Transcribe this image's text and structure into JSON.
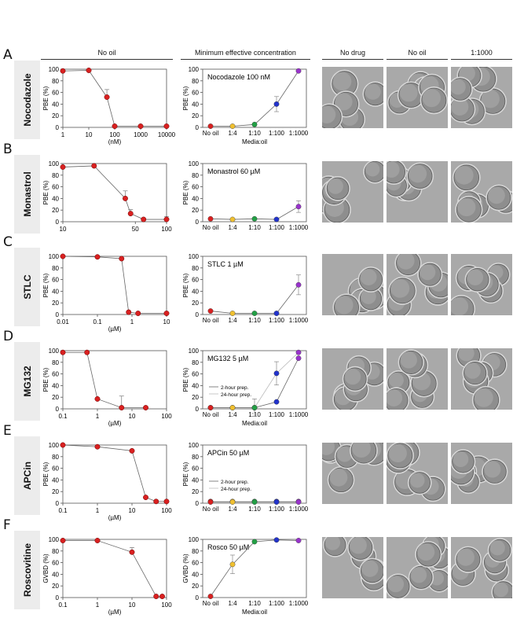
{
  "headers": {
    "no_oil": "No oil",
    "min_eff": "Minimum effective concentration",
    "img1": "No drug",
    "img2": "No oil",
    "img3": "1:1000"
  },
  "rows": [
    {
      "letter": "A",
      "drug": "Nocodazole"
    },
    {
      "letter": "B",
      "drug": "Monastrol"
    },
    {
      "letter": "C",
      "drug": "STLC"
    },
    {
      "letter": "D",
      "drug": "MG132"
    },
    {
      "letter": "E",
      "drug": "APCin"
    },
    {
      "letter": "F",
      "drug": "Roscovitine"
    }
  ],
  "colors": {
    "red": "#d92020",
    "yellow": "#f0c030",
    "green": "#22a045",
    "blue": "#2233cc",
    "purple": "#9933cc",
    "line": "#666666",
    "grey_line": "#aaaaaa"
  },
  "chart_data": [
    {
      "id": "A-left",
      "type": "scatter",
      "log_x": true,
      "ylabel": "PBE (%)",
      "xlabel": "(nM)",
      "x_ticks": [
        "1",
        "10",
        "100",
        "1000",
        "10000"
      ],
      "y_ticks": [
        "0",
        "20",
        "40",
        "60",
        "80",
        "100"
      ],
      "ylim": [
        0,
        100
      ],
      "series": [
        {
          "x": [
            1,
            10,
            50,
            100,
            1000,
            10000
          ],
          "y": [
            97,
            98,
            52,
            2,
            2,
            2
          ],
          "err": [
            0,
            0,
            13,
            0,
            0,
            0
          ]
        }
      ]
    },
    {
      "id": "A-right",
      "type": "line",
      "ylabel": "PBE (%)",
      "xlabel": "Media:oil",
      "annotation": "Nocodazole 100 nM",
      "categories": [
        "No oil",
        "1:4",
        "1:10",
        "1:100",
        "1:1000"
      ],
      "y_ticks": [
        "0",
        "20",
        "40",
        "60",
        "80",
        "100"
      ],
      "ylim": [
        0,
        100
      ],
      "series": [
        {
          "values": [
            2,
            2,
            5,
            40,
            97
          ],
          "err": [
            0,
            0,
            0,
            13,
            0
          ]
        }
      ]
    },
    {
      "id": "B-left",
      "type": "scatter",
      "log_x": true,
      "ylabel": "PBE (%)",
      "xlabel": "",
      "x_ticks": [
        "10",
        "50",
        "100"
      ],
      "x_tick_vals": [
        10,
        50,
        100
      ],
      "y_ticks": [
        "0",
        "20",
        "40",
        "60",
        "80",
        "100"
      ],
      "ylim": [
        0,
        100
      ],
      "series": [
        {
          "x": [
            10,
            20,
            40,
            45,
            60,
            100
          ],
          "y": [
            94,
            96,
            40,
            14,
            4,
            4
          ],
          "err": [
            0,
            0,
            13,
            7,
            0,
            5
          ]
        }
      ]
    },
    {
      "id": "B-right",
      "type": "line",
      "ylabel": "PBE (%)",
      "xlabel": "",
      "annotation": "Monastrol 60 µM",
      "categories": [
        "No oil",
        "1:4",
        "1:10",
        "1:100",
        "1:1000"
      ],
      "y_ticks": [
        "0",
        "20",
        "40",
        "60",
        "80",
        "100"
      ],
      "ylim": [
        0,
        100
      ],
      "series": [
        {
          "values": [
            5,
            4,
            5,
            4,
            26
          ],
          "err": [
            0,
            0,
            0,
            0,
            10
          ]
        }
      ]
    },
    {
      "id": "C-left",
      "type": "scatter",
      "log_x": true,
      "ylabel": "PBE (%)",
      "xlabel": "(µM)",
      "x_ticks": [
        "0.01",
        "0.1",
        "1",
        "10"
      ],
      "y_ticks": [
        "0",
        "20",
        "40",
        "60",
        "80",
        "100"
      ],
      "ylim": [
        0,
        100
      ],
      "series": [
        {
          "x": [
            0.01,
            0.1,
            0.5,
            0.8,
            1.5,
            10
          ],
          "y": [
            100,
            99,
            96,
            4,
            2,
            2
          ],
          "err": [
            0,
            0,
            0,
            0,
            0,
            0
          ]
        }
      ]
    },
    {
      "id": "C-right",
      "type": "line",
      "ylabel": "PBE (%)",
      "xlabel": "",
      "annotation": "STLC 1 µM",
      "categories": [
        "No oil",
        "1:4",
        "1:10",
        "1:100",
        "1:1000"
      ],
      "y_ticks": [
        "0",
        "20",
        "40",
        "60",
        "80",
        "100"
      ],
      "ylim": [
        0,
        100
      ],
      "series": [
        {
          "values": [
            6,
            2,
            2,
            2,
            51
          ],
          "err": [
            0,
            0,
            0,
            0,
            17
          ]
        }
      ]
    },
    {
      "id": "D-left",
      "type": "scatter",
      "log_x": true,
      "ylabel": "PBE (%)",
      "xlabel": "(µM)",
      "x_ticks": [
        "0.1",
        "1",
        "10",
        "100"
      ],
      "y_ticks": [
        "0",
        "20",
        "40",
        "60",
        "80",
        "100"
      ],
      "ylim": [
        0,
        100
      ],
      "series": [
        {
          "x": [
            0.1,
            0.5,
            1,
            5,
            25
          ],
          "y": [
            97,
            97,
            17,
            2,
            2
          ],
          "err": [
            0,
            0,
            0,
            20,
            0
          ]
        }
      ]
    },
    {
      "id": "D-right",
      "type": "line",
      "ylabel": "PBE (%)",
      "xlabel": "Media:oil",
      "annotation": "MG132 5 µM",
      "legend": [
        "2-hour prep.",
        "24-hour prep."
      ],
      "categories": [
        "No oil",
        "1:4",
        "1:10",
        "1:100",
        "1:1000"
      ],
      "y_ticks": [
        "0",
        "20",
        "40",
        "60",
        "80",
        "100"
      ],
      "ylim": [
        0,
        100
      ],
      "series": [
        {
          "values": [
            2,
            2,
            2,
            12,
            87
          ],
          "err": [
            0,
            0,
            0,
            0,
            0
          ]
        },
        {
          "values": [
            2,
            2,
            2,
            61,
            97
          ],
          "err": [
            0,
            0,
            15,
            20,
            0
          ],
          "grey": true
        }
      ]
    },
    {
      "id": "E-left",
      "type": "scatter",
      "log_x": true,
      "ylabel": "PBE (%)",
      "xlabel": "(µM)",
      "x_ticks": [
        "0.1",
        "1",
        "10",
        "100"
      ],
      "y_ticks": [
        "0",
        "20",
        "40",
        "60",
        "80",
        "100"
      ],
      "ylim": [
        0,
        100
      ],
      "series": [
        {
          "x": [
            0.1,
            1,
            10,
            25,
            50,
            100
          ],
          "y": [
            100,
            97,
            90,
            10,
            3,
            3
          ],
          "err": [
            0,
            0,
            0,
            0,
            0,
            0
          ]
        }
      ]
    },
    {
      "id": "E-right",
      "type": "line",
      "ylabel": "PBE (%)",
      "xlabel": "",
      "annotation": "APCin 50 µM",
      "legend": [
        "2-hour prep.",
        "24-hour prep."
      ],
      "categories": [
        "No oil",
        "1:4",
        "1:10",
        "1:100",
        "1:1000"
      ],
      "y_ticks": [
        "0",
        "20",
        "40",
        "60",
        "80",
        "100"
      ],
      "ylim": [
        0,
        100
      ],
      "series": [
        {
          "values": [
            2,
            2,
            2,
            2,
            2
          ],
          "err": [
            0,
            0,
            0,
            0,
            0
          ]
        },
        {
          "values": [
            3,
            3,
            3,
            3,
            3
          ],
          "err": [
            0,
            0,
            0,
            0,
            0
          ],
          "grey": true
        }
      ]
    },
    {
      "id": "F-left",
      "type": "scatter",
      "log_x": true,
      "ylabel": "GVBD (%)",
      "xlabel": "(µM)",
      "x_ticks": [
        "0.1",
        "1",
        "10",
        "100"
      ],
      "y_ticks": [
        "0",
        "20",
        "40",
        "60",
        "80",
        "100"
      ],
      "ylim": [
        0,
        100
      ],
      "series": [
        {
          "x": [
            0.1,
            1,
            10,
            50,
            75
          ],
          "y": [
            98,
            98,
            78,
            2,
            2
          ],
          "err": [
            0,
            0,
            8,
            0,
            0
          ]
        }
      ]
    },
    {
      "id": "F-right",
      "type": "line",
      "ylabel": "GVBD (%)",
      "xlabel": "Media:oil",
      "annotation": "Rosco 50 µM",
      "categories": [
        "No oil",
        "1:4",
        "1:10",
        "1:100",
        "1:1000"
      ],
      "y_ticks": [
        "0",
        "20",
        "40",
        "60",
        "80",
        "100"
      ],
      "ylim": [
        0,
        100
      ],
      "series": [
        {
          "values": [
            2,
            57,
            96,
            99,
            98
          ],
          "err": [
            0,
            16,
            0,
            0,
            0
          ]
        }
      ]
    }
  ]
}
